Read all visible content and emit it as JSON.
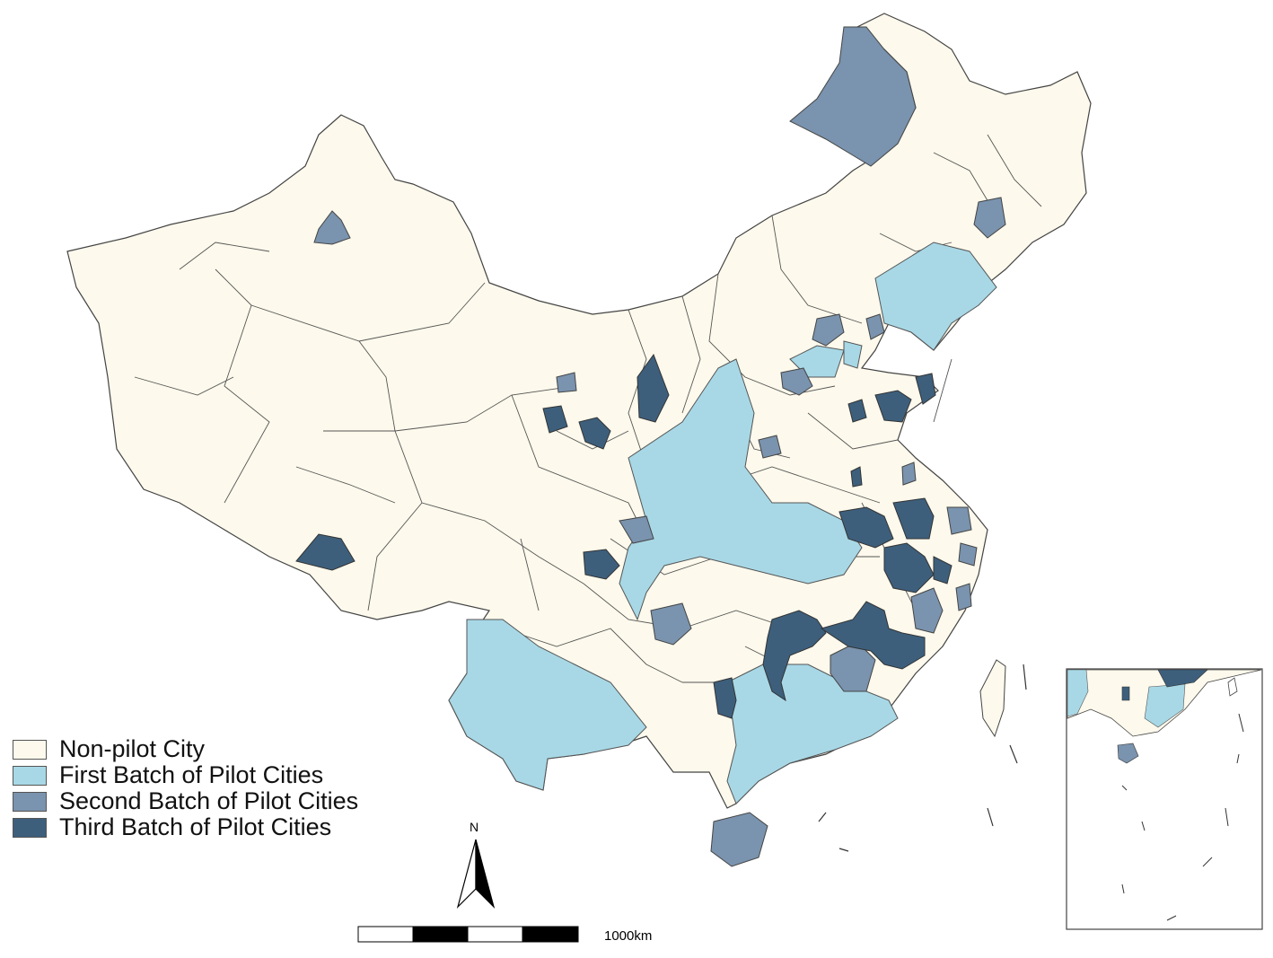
{
  "legend": {
    "items": [
      {
        "label": "Non-pilot City",
        "color": "#fdf9ec"
      },
      {
        "label": "First Batch of Pilot Cities",
        "color": "#a8d8e6"
      },
      {
        "label": "Second Batch of Pilot Cities",
        "color": "#7a93ae"
      },
      {
        "label": "Third Batch of Pilot Cities",
        "color": "#3d5f7c"
      }
    ]
  },
  "north_arrow": {
    "label": "N"
  },
  "scale_bar": {
    "label": "1000km"
  },
  "colors": {
    "border": "#444444",
    "background": "#ffffff"
  }
}
